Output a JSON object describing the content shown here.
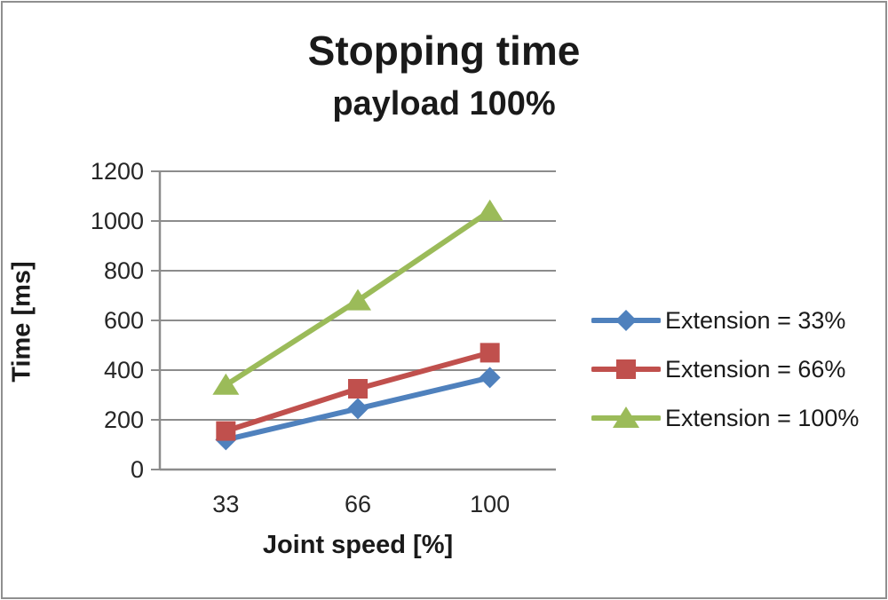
{
  "frame": {
    "border_color": "#8f8f8f",
    "background_color": "#ffffff"
  },
  "chart_data": {
    "type": "line",
    "title": "Stopping time",
    "subtitle": "payload 100%",
    "xlabel": "Joint speed [%]",
    "ylabel": "Time [ms]",
    "categories": [
      "33",
      "66",
      "100"
    ],
    "x_values": [
      33,
      66,
      100
    ],
    "series": [
      {
        "name": "Extension = 33%",
        "color": "#4F81BD",
        "marker": "diamond",
        "values": [
          120,
          245,
          370
        ]
      },
      {
        "name": "Extension = 66%",
        "color": "#C0504D",
        "marker": "square",
        "values": [
          155,
          325,
          470
        ]
      },
      {
        "name": "Extension = 100%",
        "color": "#9BBB59",
        "marker": "triangle",
        "values": [
          340,
          680,
          1040
        ]
      }
    ],
    "ylim": [
      0,
      1200
    ],
    "yticks": [
      0,
      200,
      400,
      600,
      800,
      1000,
      1200
    ],
    "grid": true,
    "gridline_color": "#8c8c8c",
    "axis_color": "#8c8c8c",
    "legend_position": "right"
  }
}
